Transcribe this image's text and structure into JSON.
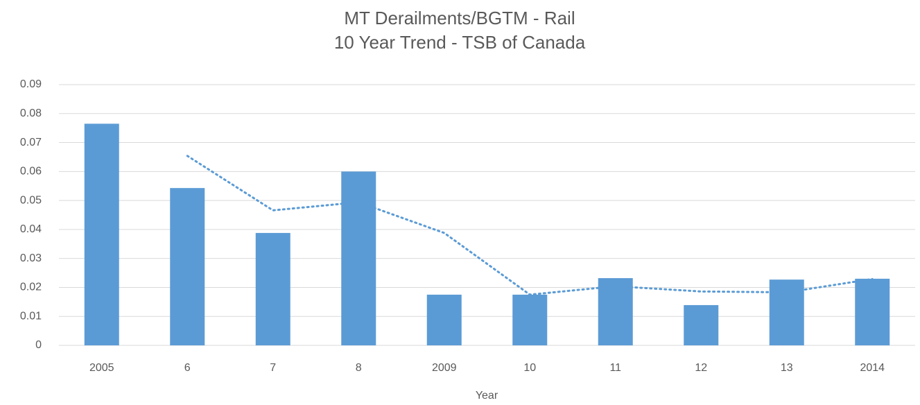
{
  "chart_data": {
    "type": "bar",
    "title": [
      "MT Derailments/BGTM - Rail",
      "10 Year Trend - TSB of Canada"
    ],
    "x_label": "Year",
    "categories": [
      "2005",
      "6",
      "7",
      "8",
      "2009",
      "10",
      "11",
      "12",
      "13",
      "2014"
    ],
    "series": [
      {
        "type": "bar",
        "color": "#5b9bd5",
        "values": [
          0.0765,
          0.0543,
          0.0388,
          0.06,
          0.0175,
          0.0175,
          0.0232,
          0.0139,
          0.0227,
          0.023
        ]
      },
      {
        "type": "line",
        "dash": "dotted",
        "color": "#5b9bd5",
        "values": [
          null,
          0.0654,
          0.0466,
          0.0494,
          0.0388,
          0.0175,
          0.0204,
          0.0186,
          0.0183,
          0.0229
        ]
      }
    ],
    "ylim": [
      0,
      0.09
    ],
    "yticks": [
      0,
      0.01,
      0.02,
      0.03,
      0.04,
      0.05,
      0.06,
      0.07,
      0.08,
      0.09
    ],
    "grid": true
  }
}
